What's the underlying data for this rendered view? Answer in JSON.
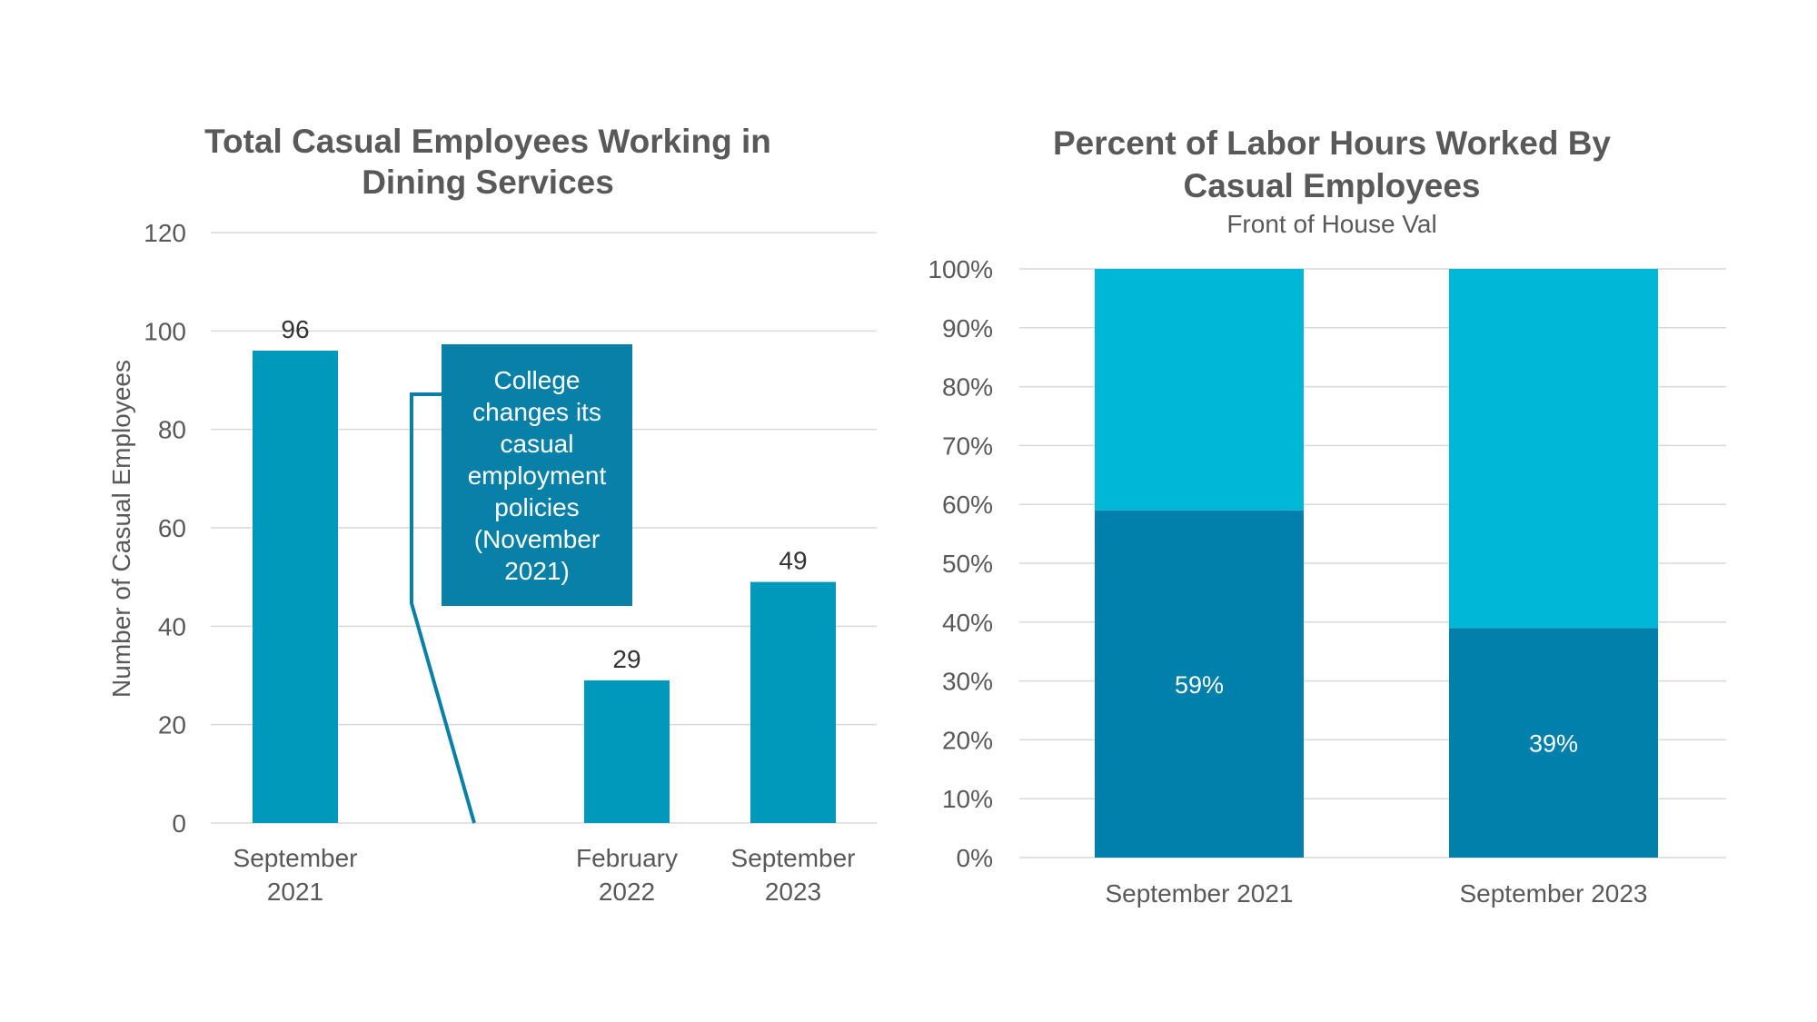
{
  "chart_data": [
    {
      "type": "bar",
      "title_lines": [
        "Total Casual Employees Working in",
        "Dining Services"
      ],
      "ylabel": "Number of Casual Employees",
      "ylim": [
        0,
        120
      ],
      "yticks": [
        0,
        20,
        40,
        60,
        80,
        100,
        120
      ],
      "categories": [
        {
          "lines": [
            "September",
            "2021"
          ]
        },
        {
          "lines": [
            "February",
            "2022"
          ]
        },
        {
          "lines": [
            "September",
            "2023"
          ]
        }
      ],
      "values": [
        96,
        29,
        49
      ],
      "bar_color": "#0099bc",
      "annotation": {
        "lines": [
          "College",
          "changes its",
          "casual",
          "employment",
          "policies",
          "(November",
          "2021)"
        ],
        "color": "#0980a8"
      }
    },
    {
      "type": "stacked_bar",
      "title_lines": [
        "Percent of Labor Hours Worked By",
        "Casual Employees"
      ],
      "subtitle": "Front of House Val",
      "ylim": [
        0,
        100
      ],
      "yticks": [
        "0%",
        "10%",
        "20%",
        "30%",
        "40%",
        "50%",
        "60%",
        "70%",
        "80%",
        "90%",
        "100%"
      ],
      "categories": [
        "September 2021",
        "September 2023"
      ],
      "series": [
        {
          "values": [
            59,
            39
          ],
          "labels": [
            "59%",
            "39%"
          ],
          "color": "#0080aa"
        },
        {
          "values": [
            41,
            61
          ],
          "color": "#00b7d8"
        }
      ]
    }
  ]
}
